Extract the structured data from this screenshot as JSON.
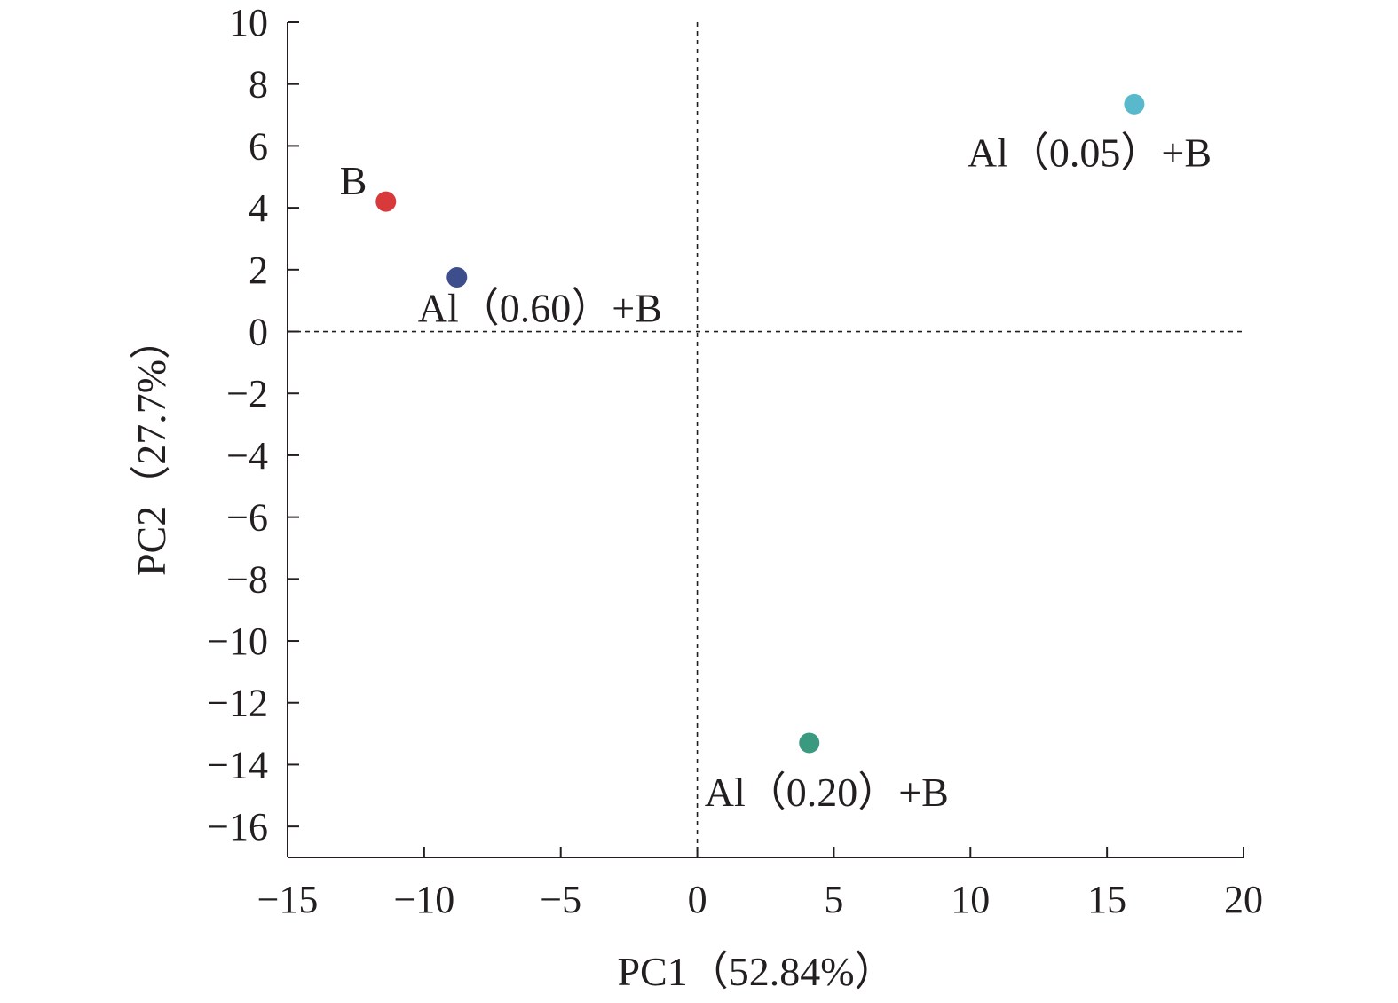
{
  "chart_data": {
    "type": "scatter",
    "xlabel": "PC1（52.84%）",
    "ylabel": "PC2（27.7%）",
    "xlim": [
      -15,
      20
    ],
    "ylim": [
      -17,
      10
    ],
    "x_ticks": [
      -15,
      -10,
      -5,
      0,
      5,
      10,
      15,
      20
    ],
    "x_tick_labels": [
      "−15",
      "−10",
      "−5",
      "0",
      "5",
      "10",
      "15",
      "20"
    ],
    "y_ticks": [
      10,
      8,
      6,
      4,
      2,
      0,
      -2,
      -4,
      -6,
      -8,
      -10,
      -12,
      -14,
      -16
    ],
    "y_tick_labels": [
      "10",
      "8",
      "6",
      "4",
      "2",
      "0",
      "−2",
      "−4",
      "−6",
      "−8",
      "−10",
      "−12",
      "−14",
      "−16"
    ],
    "reference_lines": {
      "x": 0,
      "y": 0,
      "style": "dashed"
    },
    "grid": false,
    "points": [
      {
        "label": "B",
        "x": -11.4,
        "y": 4.2,
        "color": "#d83a3b"
      },
      {
        "label": "Al（0.60）+B",
        "x": -8.8,
        "y": 1.75,
        "color": "#3d4e8c"
      },
      {
        "label": "Al（0.05）+B",
        "x": 16.0,
        "y": 7.35,
        "color": "#59b9cc"
      },
      {
        "label": "Al（0.20）+B",
        "x": 4.1,
        "y": -13.3,
        "color": "#3a9a80"
      }
    ]
  }
}
